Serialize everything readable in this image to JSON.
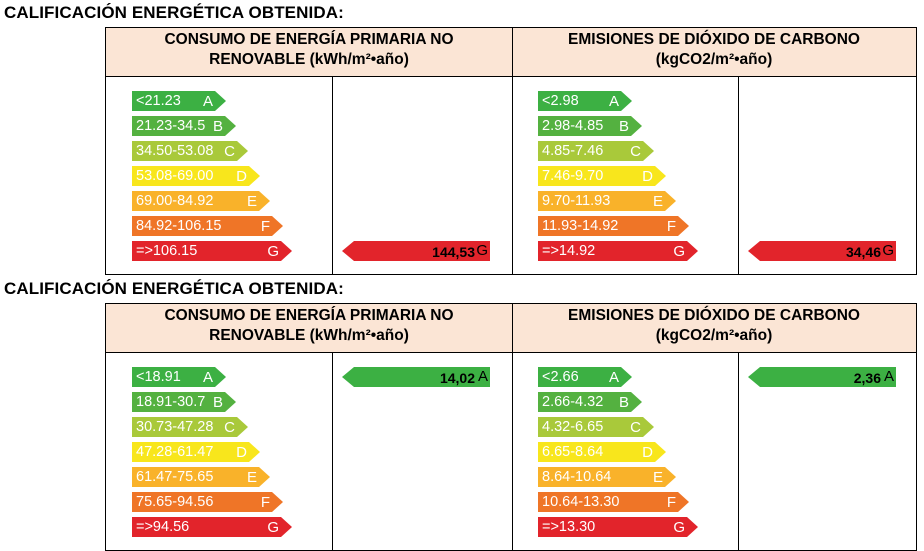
{
  "colors": {
    "A": "#3cb043",
    "B": "#54b140",
    "C": "#a9c93a",
    "D": "#f8e61c",
    "E": "#f9b22a",
    "F": "#ef7527",
    "G": "#e2242b",
    "header_bg": "#fbe5d5"
  },
  "sections": [
    {
      "title": "CALIFICACIÓN ENERGÉTICA OBTENIDA:",
      "consumo": {
        "header_line1": "CONSUMO  DE ENERGÍA PRIMARIA NO",
        "header_line2": "RENOVABLE (kWh/m²•año)",
        "bars": [
          {
            "letter": "A",
            "range": "<21.23"
          },
          {
            "letter": "B",
            "range": "21.23-34.5"
          },
          {
            "letter": "C",
            "range": "34.50-53.08"
          },
          {
            "letter": "D",
            "range": "53.08-69.00"
          },
          {
            "letter": "E",
            "range": "69.00-84.92"
          },
          {
            "letter": "F",
            "range": "84.92-106.15"
          },
          {
            "letter": "G",
            "range": "=>106.15"
          }
        ],
        "result": {
          "value": "144,53",
          "letter": "G"
        }
      },
      "emisiones": {
        "header_line1": "EMISIONES DE DIÓXIDO DE CARBONO",
        "header_line2": "(kgCO2/m²•año)",
        "bars": [
          {
            "letter": "A",
            "range": "<2.98"
          },
          {
            "letter": "B",
            "range": "2.98-4.85"
          },
          {
            "letter": "C",
            "range": "4.85-7.46"
          },
          {
            "letter": "D",
            "range": "7.46-9.70"
          },
          {
            "letter": "E",
            "range": "9.70-11.93"
          },
          {
            "letter": "F",
            "range": "11.93-14.92"
          },
          {
            "letter": "G",
            "range": "=>14.92"
          }
        ],
        "result": {
          "value": "34,46",
          "letter": "G"
        }
      }
    },
    {
      "title": "CALIFICACIÓN ENERGÉTICA OBTENIDA:",
      "consumo": {
        "header_line1": "CONSUMO  DE ENERGÍA PRIMARIA NO",
        "header_line2": "RENOVABLE (kWh/m²•año)",
        "bars": [
          {
            "letter": "A",
            "range": "<18.91"
          },
          {
            "letter": "B",
            "range": "18.91-30.7"
          },
          {
            "letter": "C",
            "range": "30.73-47.28"
          },
          {
            "letter": "D",
            "range": "47.28-61.47"
          },
          {
            "letter": "E",
            "range": "61.47-75.65"
          },
          {
            "letter": "F",
            "range": "75.65-94.56"
          },
          {
            "letter": "G",
            "range": "=>94.56"
          }
        ],
        "result": {
          "value": "14,02",
          "letter": "A"
        }
      },
      "emisiones": {
        "header_line1": "EMISIONES DE DIÓXIDO DE CARBONO",
        "header_line2": "(kgCO2/m²•año)",
        "bars": [
          {
            "letter": "A",
            "range": "<2.66"
          },
          {
            "letter": "B",
            "range": "2.66-4.32"
          },
          {
            "letter": "C",
            "range": "4.32-6.65"
          },
          {
            "letter": "D",
            "range": "6.65-8.64"
          },
          {
            "letter": "E",
            "range": "8.64-10.64"
          },
          {
            "letter": "F",
            "range": "10.64-13.30"
          },
          {
            "letter": "G",
            "range": "=>13.30"
          }
        ],
        "result": {
          "value": "2,36",
          "letter": "A"
        }
      }
    }
  ]
}
